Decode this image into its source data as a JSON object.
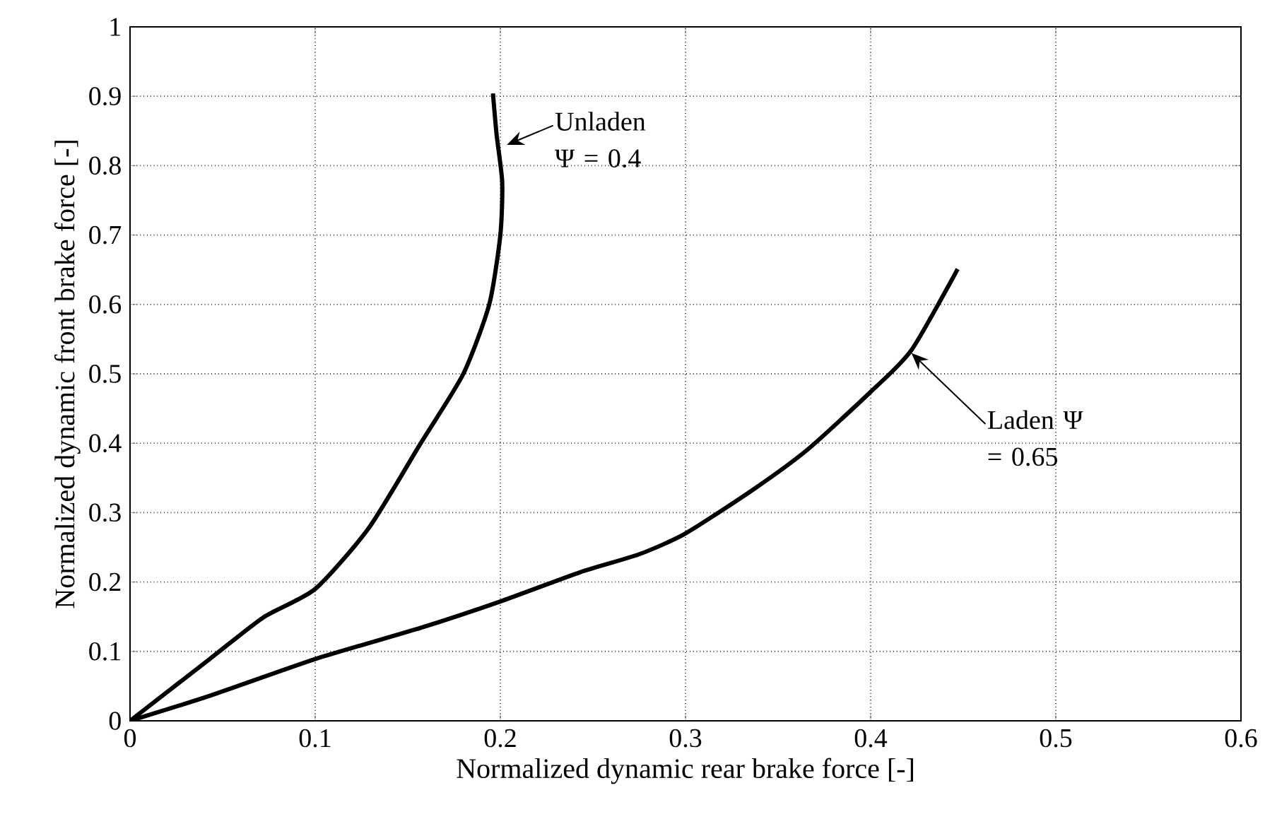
{
  "chart_data": {
    "type": "line",
    "xlabel": "Normalized dynamic rear brake force [-]",
    "ylabel": "Normalized dynamic front brake force [-]",
    "series": [
      {
        "color": "#000000",
        "x": [
          0,
          0.043,
          0.072,
          0.1,
          0.129,
          0.157,
          0.18,
          0.194,
          0.2,
          0.201,
          0.198,
          0.196
        ],
        "values": [
          0,
          0.089,
          0.149,
          0.19,
          0.278,
          0.4,
          0.5,
          0.6,
          0.7,
          0.776,
          0.844,
          0.904
        ]
      },
      {
        "color": "#000000",
        "x": [
          0,
          0.043,
          0.1,
          0.157,
          0.2,
          0.243,
          0.275,
          0.3,
          0.337,
          0.366,
          0.4,
          0.422,
          0.447
        ],
        "values": [
          0,
          0.036,
          0.089,
          0.134,
          0.172,
          0.214,
          0.24,
          0.27,
          0.334,
          0.391,
          0.474,
          0.534,
          0.651
        ]
      }
    ],
    "annotations": [
      {
        "text": "Unladen Ψ = 0.4",
        "x": 0.2035,
        "y": 0.83
      },
      {
        "text": "Laden Ψ = 0.65",
        "x": 0.422,
        "y": 0.53
      }
    ],
    "xlim": [
      0,
      0.6
    ],
    "ylim": [
      0,
      1
    ],
    "xticks": [
      0,
      0.1,
      0.2,
      0.3,
      0.4,
      0.5,
      0.6
    ],
    "yticks": [
      0,
      0.1,
      0.2,
      0.3,
      0.4,
      0.5,
      0.6,
      0.7,
      0.8,
      0.9,
      1
    ],
    "grid": true,
    "line_style": "solid",
    "marker": "none"
  }
}
